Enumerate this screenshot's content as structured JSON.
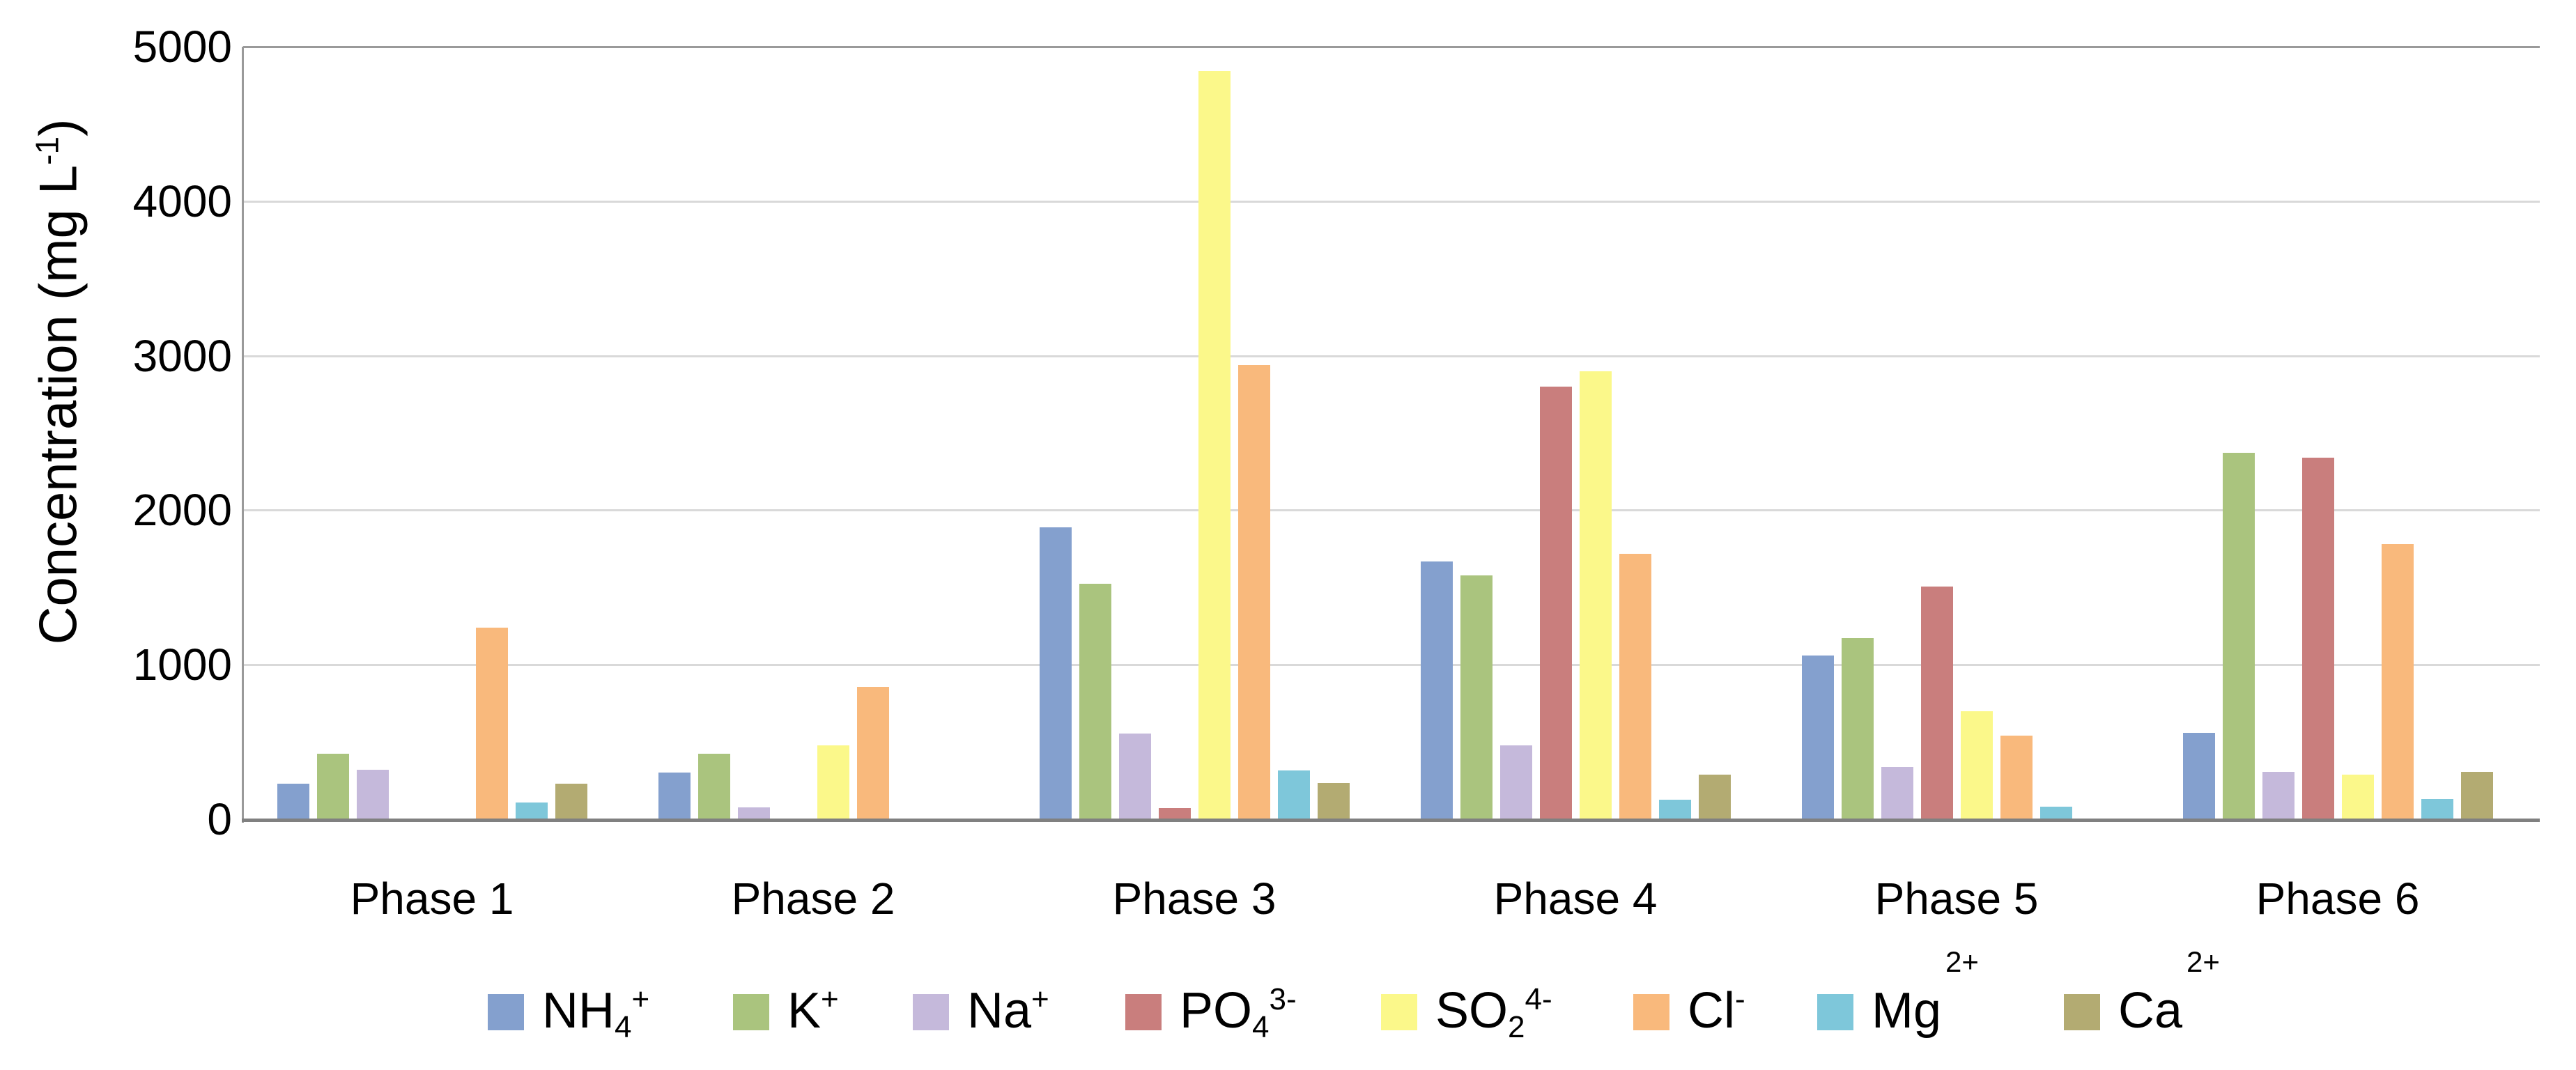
{
  "chart_data": {
    "type": "bar",
    "title": "",
    "xlabel": "",
    "ylabel": "Concentration (mg L-1)",
    "ylabel_segments": [
      {
        "t": "Concentration (mg L"
      },
      {
        "t": "-1",
        "style": "sup"
      },
      {
        "t": ")"
      }
    ],
    "ylim": [
      0,
      5000
    ],
    "ytick_values": [
      0,
      1000,
      2000,
      3000,
      4000,
      5000
    ],
    "ytick_labels": [
      "0",
      "1000",
      "2000",
      "3000",
      "4000",
      "5000"
    ],
    "grid": "horizontal",
    "legend_position": "bottom",
    "categories": [
      "Phase 1",
      "Phase 2",
      "Phase 3",
      "Phase 4",
      "Phase 5",
      "Phase 6"
    ],
    "series": [
      {
        "name": "NH4+",
        "color": "#84a0ce",
        "values": [
          230,
          300,
          1890,
          1670,
          1060,
          560
        ]
      },
      {
        "name": "K+",
        "color": "#aac47e",
        "values": [
          425,
          425,
          1525,
          1580,
          1170,
          2370
        ]
      },
      {
        "name": "Na+",
        "color": "#c5b9db",
        "values": [
          320,
          75,
          555,
          480,
          340,
          305
        ]
      },
      {
        "name": "PO43-",
        "color": "#c97e7d",
        "values": [
          0,
          0,
          70,
          2800,
          1505,
          2340
        ]
      },
      {
        "name": "SO24-",
        "color": "#fbf88a",
        "values": [
          0,
          480,
          4840,
          2900,
          700,
          290
        ]
      },
      {
        "name": "Cl-",
        "color": "#f9b97c",
        "values": [
          1240,
          855,
          2940,
          1720,
          540,
          1780
        ]
      },
      {
        "name": "Mg2+",
        "color": "#7ec7da",
        "values": [
          110,
          0,
          315,
          125,
          80,
          130
        ]
      },
      {
        "name": "Ca2+",
        "color": "#b3ab72",
        "values": [
          230,
          0,
          235,
          290,
          0,
          305
        ]
      }
    ]
  },
  "legend": {
    "items": [
      {
        "key": "NH4+",
        "color": "#84a0ce",
        "segments": [
          {
            "t": "NH"
          },
          {
            "t": "4",
            "style": "sub"
          },
          {
            "t": "+",
            "style": "sup"
          }
        ]
      },
      {
        "key": "K+",
        "color": "#aac47e",
        "segments": [
          {
            "t": "K"
          },
          {
            "t": "+",
            "style": "sup"
          }
        ]
      },
      {
        "key": "Na+",
        "color": "#c5b9db",
        "segments": [
          {
            "t": "Na"
          },
          {
            "t": "+",
            "style": "sup"
          }
        ]
      },
      {
        "key": "PO43-",
        "color": "#c97e7d",
        "segments": [
          {
            "t": "PO"
          },
          {
            "t": "4",
            "style": "sub"
          },
          {
            "t": "3-",
            "style": "sup"
          }
        ]
      },
      {
        "key": "SO24-",
        "color": "#fbf88a",
        "segments": [
          {
            "t": "SO"
          },
          {
            "t": "2",
            "style": "sub"
          },
          {
            "t": "4-",
            "style": "sup"
          }
        ]
      },
      {
        "key": "Cl-",
        "color": "#f9b97c",
        "segments": [
          {
            "t": "Cl"
          },
          {
            "t": "-",
            "style": "sup"
          }
        ]
      },
      {
        "key": "Mg2+",
        "color": "#7ec7da",
        "segments": [
          {
            "t": "Mg"
          },
          {
            "t": "2+",
            "style": "sup-raised"
          }
        ]
      },
      {
        "key": "Ca2+",
        "color": "#b3ab72",
        "segments": [
          {
            "t": "Ca"
          },
          {
            "t": "2+",
            "style": "sup-raised"
          }
        ]
      }
    ]
  },
  "colors": {
    "gridline": "#d9d9d9",
    "plot_top_border": "#9a9a9a",
    "y_axis_line": "#9a9a9a",
    "x_axis_line": "#808080",
    "text": "#000000",
    "background": "#ffffff"
  }
}
